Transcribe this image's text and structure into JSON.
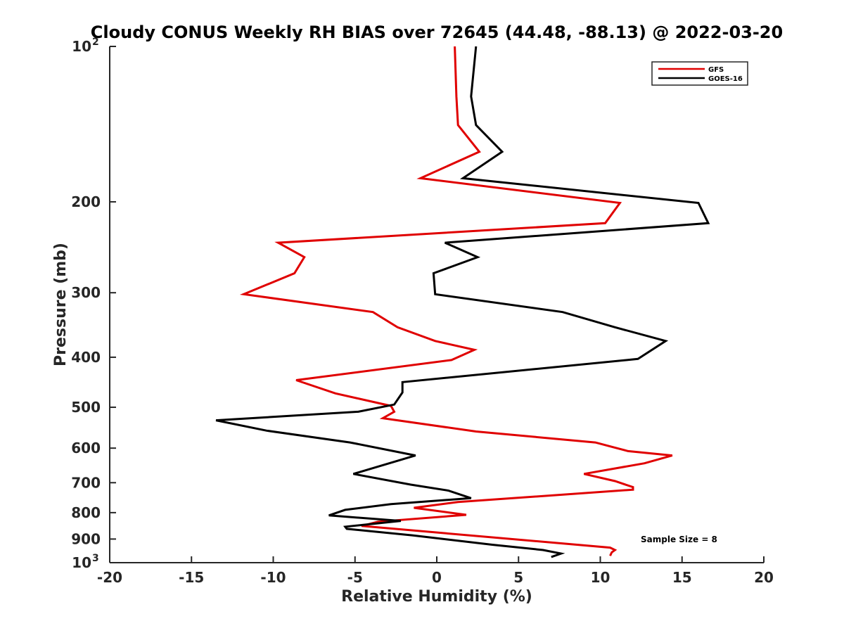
{
  "chart_data": {
    "type": "line",
    "title": "Cloudy CONUS Weekly RH BIAS over 72645 (44.48, -88.13) @ 2022-03-20",
    "xlabel": "Relative Humidity (%)",
    "ylabel": "Pressure (mb)",
    "xlim": [
      -20,
      20
    ],
    "ylim": [
      100,
      1000
    ],
    "y_scale": "log",
    "y_reversed": true,
    "x_ticks": [
      "-20",
      "-15",
      "-10",
      "-5",
      "0",
      "5",
      "10",
      "15",
      "20"
    ],
    "y_ticks": [
      {
        "value": 100,
        "label": "10",
        "sup": "2"
      },
      {
        "value": 200,
        "label": "200"
      },
      {
        "value": 300,
        "label": "300"
      },
      {
        "value": 400,
        "label": "400"
      },
      {
        "value": 500,
        "label": "500"
      },
      {
        "value": 600,
        "label": "600"
      },
      {
        "value": 700,
        "label": "700"
      },
      {
        "value": 800,
        "label": "800"
      },
      {
        "value": 900,
        "label": "900"
      },
      {
        "value": 1000,
        "label": "10",
        "sup": "3"
      }
    ],
    "legend_position": "top-right",
    "grid": false,
    "annotation": "Sample Size = 8",
    "series": [
      {
        "name": "GFS",
        "color": "#e00000",
        "points": [
          [
            1.1,
            100
          ],
          [
            1.2,
            125
          ],
          [
            1.3,
            142
          ],
          [
            2.6,
            160
          ],
          [
            -1.0,
            180
          ],
          [
            11.2,
            201
          ],
          [
            10.3,
            220
          ],
          [
            -9.7,
            240
          ],
          [
            -8.1,
            256
          ],
          [
            -8.7,
            275
          ],
          [
            -11.8,
            302
          ],
          [
            -3.9,
            327
          ],
          [
            -2.4,
            350
          ],
          [
            -0.1,
            372
          ],
          [
            2.3,
            387
          ],
          [
            0.9,
            405
          ],
          [
            -8.6,
            443
          ],
          [
            -6.2,
            470
          ],
          [
            -2.8,
            497
          ],
          [
            -2.6,
            510
          ],
          [
            -3.3,
            525
          ],
          [
            2.4,
            557
          ],
          [
            9.7,
            585
          ],
          [
            11.7,
            608
          ],
          [
            14.4,
            620
          ],
          [
            12.7,
            642
          ],
          [
            9.0,
            673
          ],
          [
            10.9,
            695
          ],
          [
            12.0,
            714
          ],
          [
            12.0,
            722
          ],
          [
            1.3,
            763
          ],
          [
            -1.4,
            783
          ],
          [
            1.8,
            808
          ],
          [
            -3.6,
            833
          ],
          [
            -4.6,
            849
          ],
          [
            10.6,
            935
          ],
          [
            10.9,
            945
          ],
          [
            10.7,
            955
          ],
          [
            10.6,
            970
          ]
        ]
      },
      {
        "name": "GOES-16",
        "color": "#000000",
        "points": [
          [
            2.4,
            100
          ],
          [
            2.1,
            125
          ],
          [
            2.4,
            142
          ],
          [
            4.0,
            160
          ],
          [
            1.6,
            180
          ],
          [
            16.0,
            201
          ],
          [
            16.6,
            220
          ],
          [
            0.5,
            240
          ],
          [
            2.5,
            256
          ],
          [
            -0.2,
            275
          ],
          [
            -0.1,
            302
          ],
          [
            7.7,
            327
          ],
          [
            10.9,
            350
          ],
          [
            14.0,
            372
          ],
          [
            12.3,
            403
          ],
          [
            -2.1,
            447
          ],
          [
            -2.1,
            468
          ],
          [
            -2.6,
            494
          ],
          [
            -4.8,
            510
          ],
          [
            -13.5,
            530
          ],
          [
            -10.4,
            555
          ],
          [
            -5.3,
            585
          ],
          [
            -1.3,
            620
          ],
          [
            -5.1,
            673
          ],
          [
            -1.6,
            706
          ],
          [
            0.7,
            725
          ],
          [
            2.1,
            750
          ],
          [
            -2.8,
            770
          ],
          [
            -5.6,
            790
          ],
          [
            -6.6,
            810
          ],
          [
            -2.2,
            830
          ],
          [
            -5.6,
            852
          ],
          [
            -5.5,
            860
          ],
          [
            -1.5,
            885
          ],
          [
            3.4,
            923
          ],
          [
            6.5,
            945
          ],
          [
            7.6,
            960
          ],
          [
            7.0,
            975
          ]
        ]
      }
    ]
  }
}
